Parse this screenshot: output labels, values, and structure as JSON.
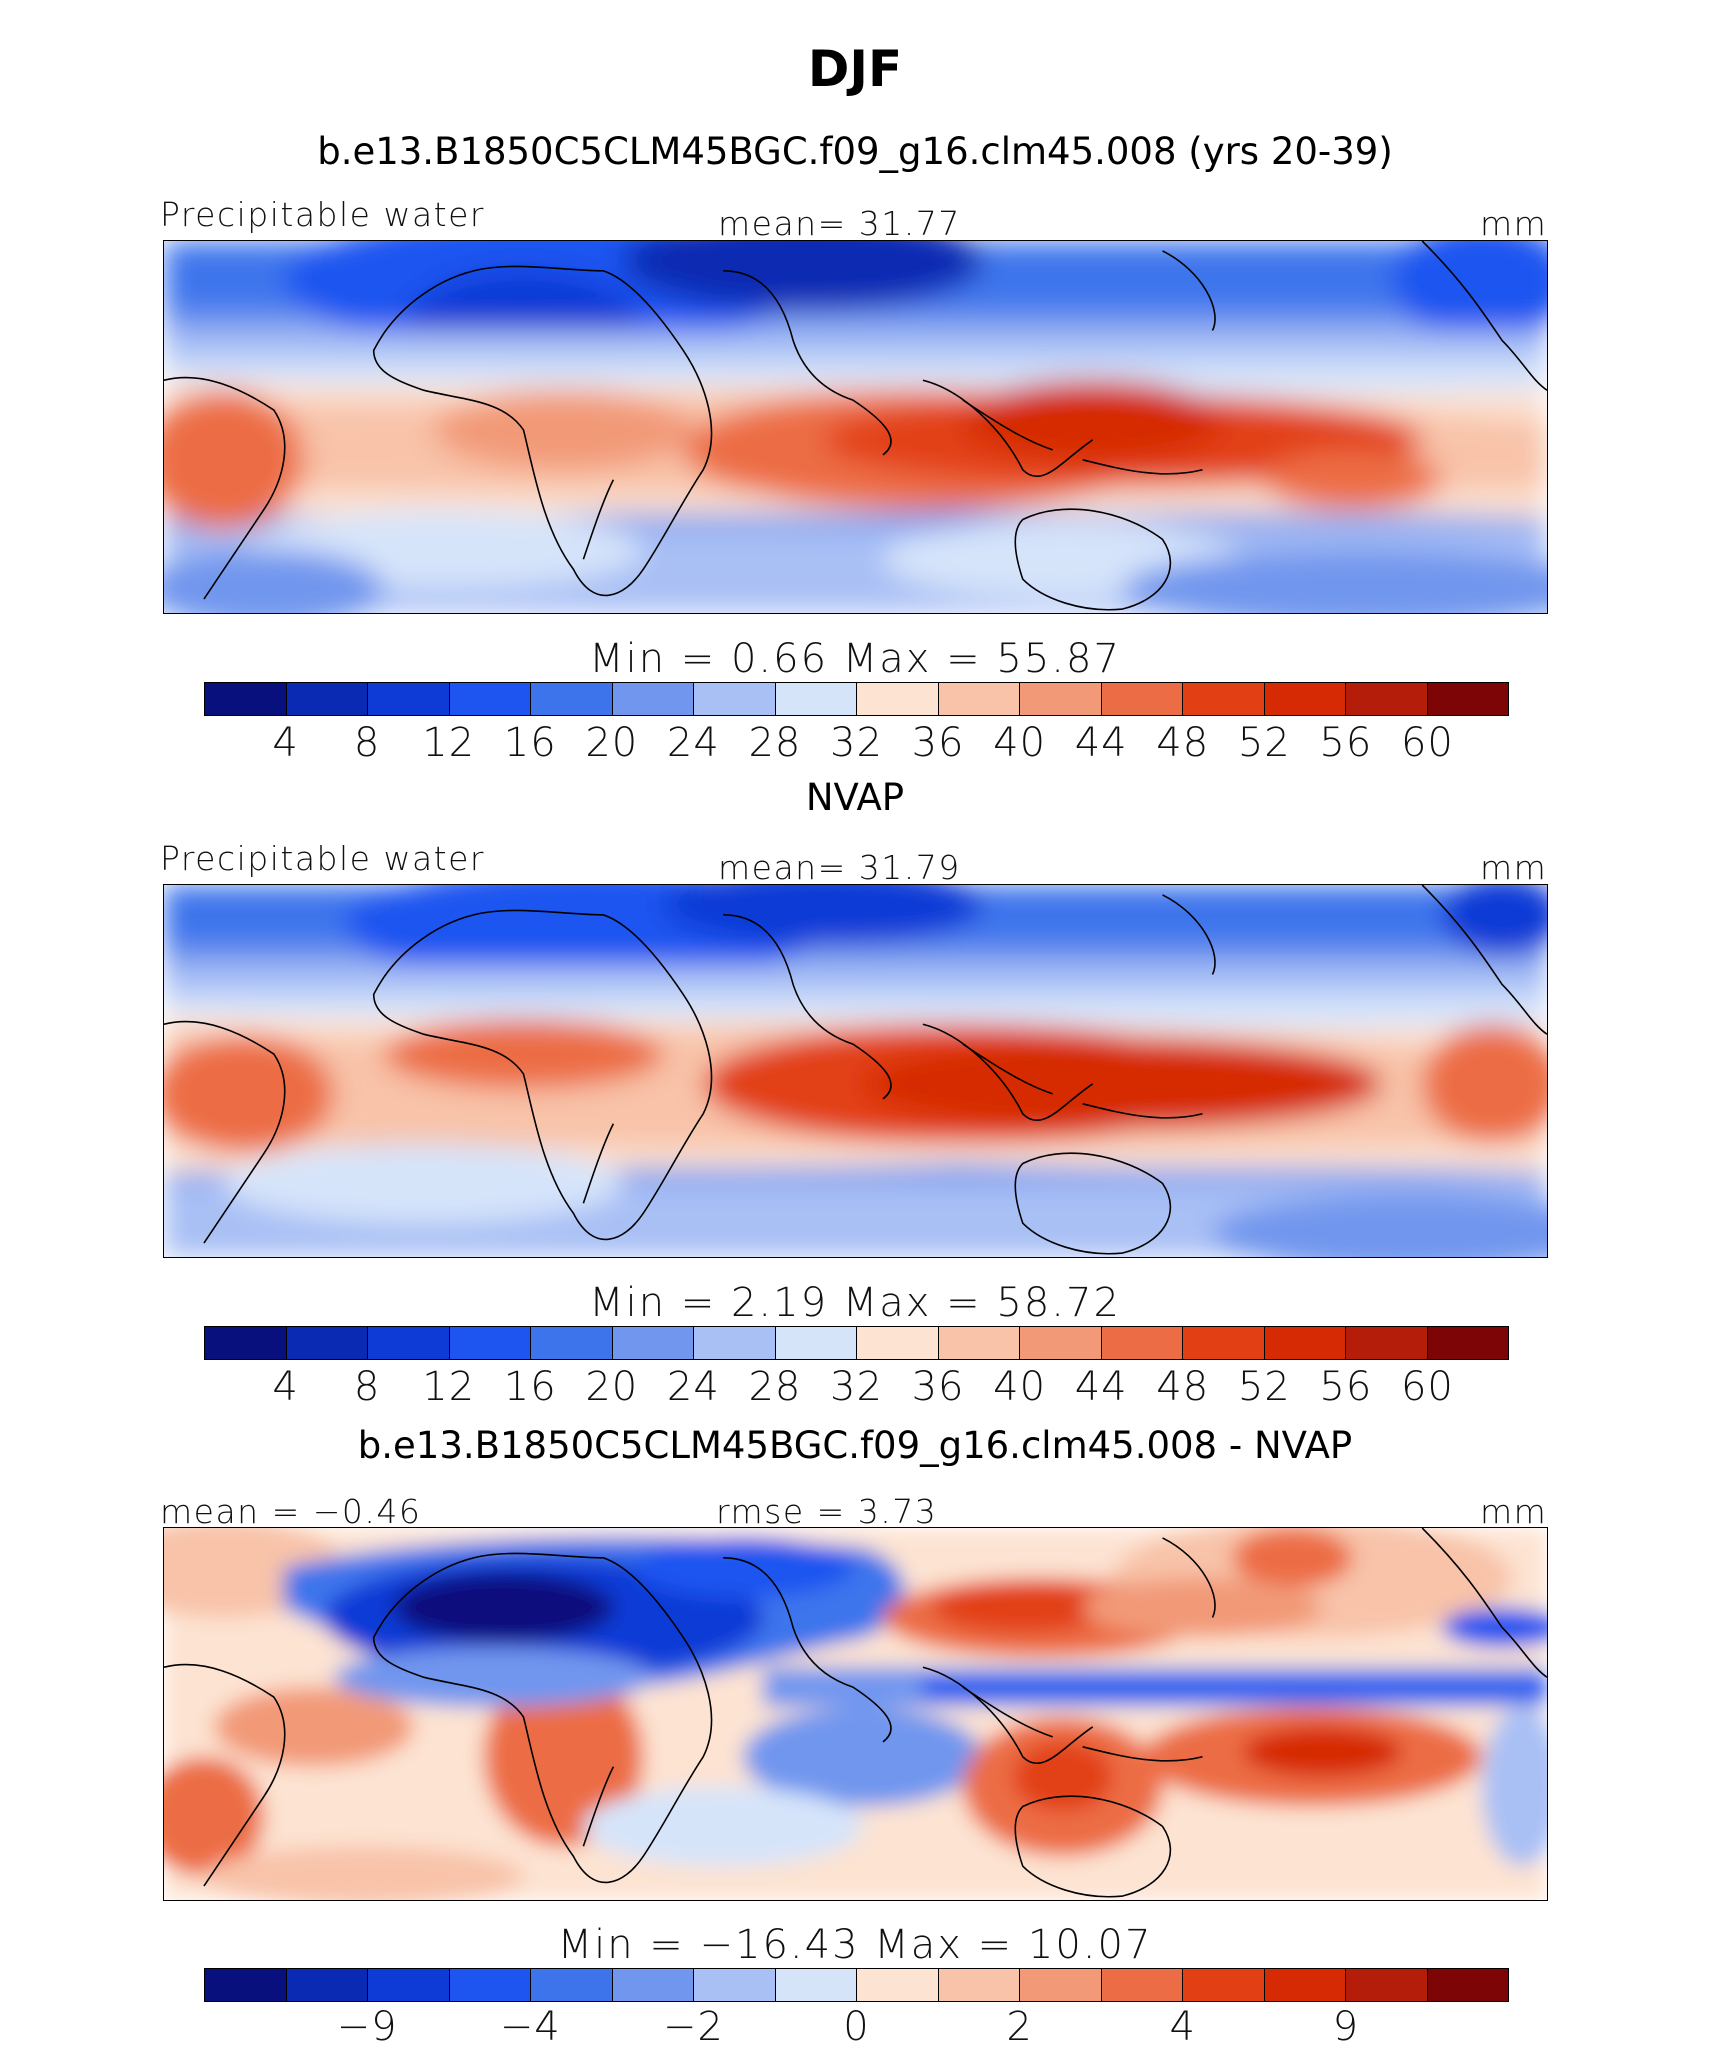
{
  "title": "DJF",
  "colors": {
    "palette": [
      "#08107d",
      "#0b2ab3",
      "#0e3bd6",
      "#1e55f0",
      "#3d74ec",
      "#7196ee",
      "#a9c0f5",
      "#d6e4fa",
      "#fde3d2",
      "#f8c3a9",
      "#f29a78",
      "#ec6d45",
      "#e23f15",
      "#d62a05",
      "#b41d0a",
      "#7e0505"
    ],
    "land": "#000000"
  },
  "chart_data": [
    {
      "type": "heatmap",
      "title": "b.e13.B1850C5CLM45BGC.f09_g16.clm45.008 (yrs 20-39)",
      "left_label": "Precipitable water",
      "center_label": "mean=   31.77",
      "units": "mm",
      "min_max_label": "Min  =      0.66  Max  =     55.87",
      "min": 0.66,
      "max": 55.87,
      "mean": 31.77,
      "colorbar_ticks": [
        "4",
        "8",
        "12",
        "16",
        "20",
        "24",
        "28",
        "32",
        "36",
        "40",
        "44",
        "48",
        "52",
        "56",
        "60"
      ]
    },
    {
      "type": "heatmap",
      "title": "NVAP",
      "left_label": "Precipitable water",
      "center_label": "mean=   31.79",
      "units": "mm",
      "min_max_label": "Min  =      2.19  Max  =     58.72",
      "min": 2.19,
      "max": 58.72,
      "mean": 31.79,
      "colorbar_ticks": [
        "4",
        "8",
        "12",
        "16",
        "20",
        "24",
        "28",
        "32",
        "36",
        "40",
        "44",
        "48",
        "52",
        "56",
        "60"
      ]
    },
    {
      "type": "heatmap",
      "title": "b.e13.B1850C5CLM45BGC.f09_g16.clm45.008 - NVAP",
      "left_label": "mean  =   −0.46",
      "center_label": "rmse  =     3.73",
      "units": "mm",
      "min_max_label": "Min  =  −16.43  Max  =    10.07",
      "min": -16.43,
      "max": 10.07,
      "mean": -0.46,
      "rmse": 3.73,
      "colorbar_ticks": [
        "−9",
        "−4",
        "−2",
        "0",
        "2",
        "4",
        "9"
      ]
    }
  ]
}
